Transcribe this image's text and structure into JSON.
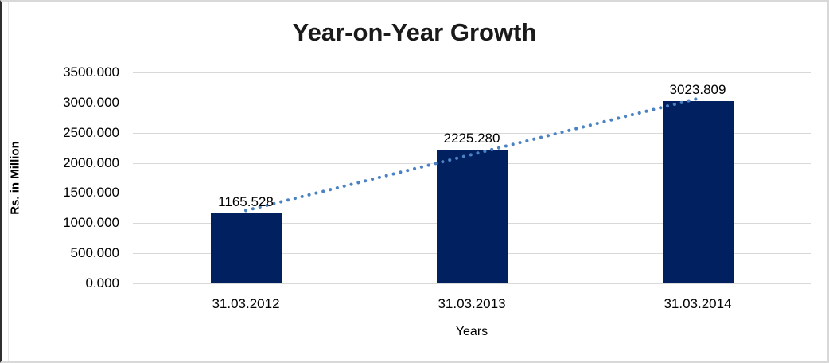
{
  "chart_data": {
    "type": "bar",
    "title": "Year-on-Year Growth",
    "xlabel": "Years",
    "ylabel": "Rs. in Million",
    "categories": [
      "31.03.2012",
      "31.03.2013",
      "31.03.2014"
    ],
    "values": [
      1165.528,
      2225.28,
      3023.809
    ],
    "data_labels": [
      "1165.528",
      "2225.280",
      "3023.809"
    ],
    "y_ticks": [
      "0.000",
      "500.000",
      "1000.000",
      "1500.000",
      "2000.000",
      "2500.000",
      "3000.000",
      "3500.000"
    ],
    "y_tick_values": [
      0,
      500,
      1000,
      1500,
      2000,
      2500,
      3000,
      3500
    ],
    "ylim": [
      0,
      3500
    ],
    "grid": true,
    "legend": "none",
    "bar_color": "#002060",
    "gridline_color": "#d9d9d9",
    "trendline": {
      "type": "linear",
      "style": "dotted",
      "color": "#4a82c4"
    }
  }
}
